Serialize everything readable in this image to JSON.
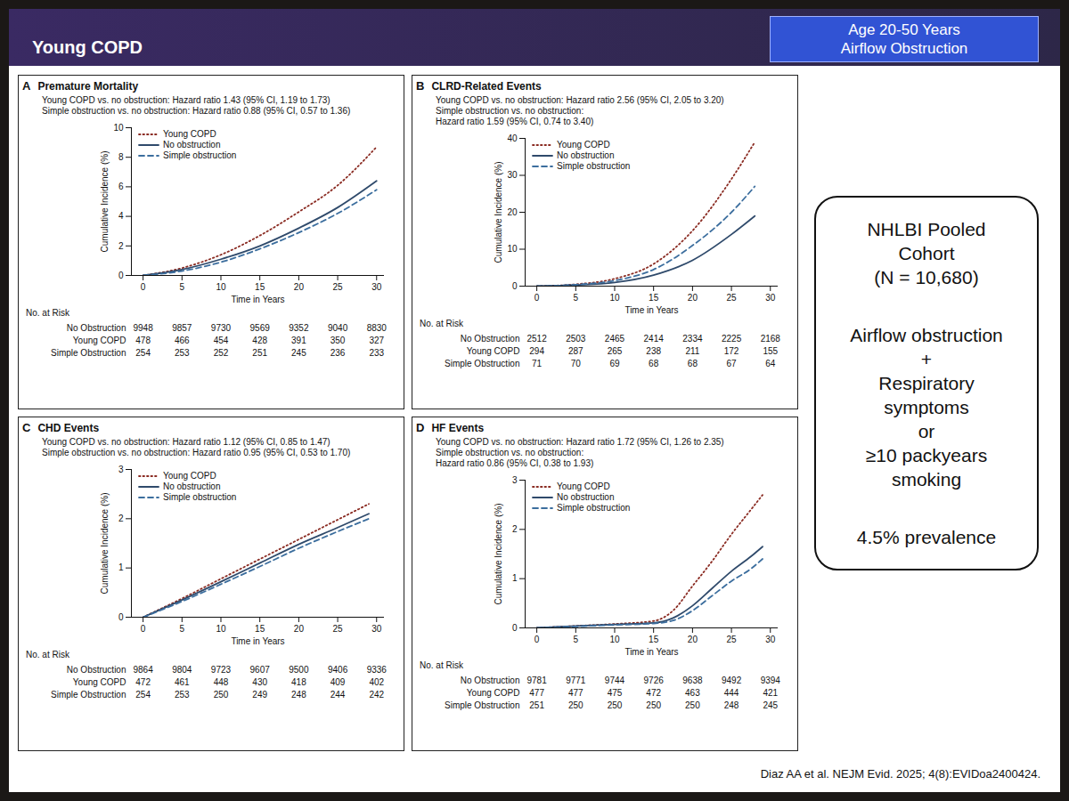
{
  "slide": {
    "title": "Young COPD",
    "banner": [
      "Age 20-50 Years",
      "Airflow Obstruction"
    ],
    "sidebar": {
      "heading": [
        "NHLBI Pooled",
        "Cohort",
        "(N = 10,680)"
      ],
      "definition": [
        "Airflow obstruction",
        "+",
        "Respiratory",
        "symptoms",
        "or",
        "≥10 packyears",
        "smoking"
      ],
      "prevalence": "4.5% prevalence"
    },
    "citation": "Diaz AA et al. NEJM Evid. 2025; 4(8):EVIDoa2400424."
  },
  "chart_data": [
    {
      "type": "line",
      "letter": "A",
      "title": "Premature Mortality",
      "annotations": [
        "Young COPD vs. no obstruction: Hazard ratio 1.43 (95% CI, 1.19 to 1.73)",
        "Simple obstruction vs. no obstruction: Hazard ratio 0.88 (95% CI, 0.57 to 1.36)"
      ],
      "xlabel": "Time in Years",
      "ylabel": "Cumulative Incidence (%)",
      "xlim": [
        -1.5,
        31
      ],
      "ylim": [
        0,
        10
      ],
      "xticks": [
        0,
        5,
        10,
        15,
        20,
        25,
        30
      ],
      "yticks": [
        0,
        2,
        4,
        6,
        8,
        10
      ],
      "legend": "top-left",
      "x": [
        0,
        5,
        10,
        15,
        20,
        25,
        30
      ],
      "series": [
        {
          "name": "Young COPD",
          "color": "#8a2b22",
          "line_style": "dotted",
          "values": [
            0,
            0.5,
            1.4,
            2.7,
            4.3,
            6.1,
            8.7
          ]
        },
        {
          "name": "No obstruction",
          "color": "#2f4a6b",
          "line_style": "solid",
          "values": [
            0,
            0.4,
            1.1,
            2.0,
            3.2,
            4.6,
            6.4
          ]
        },
        {
          "name": "Simple obstruction",
          "color": "#3c6e9e",
          "line_style": "dashed",
          "values": [
            0,
            0.3,
            0.9,
            1.8,
            2.9,
            4.2,
            5.8
          ]
        }
      ],
      "at_risk": {
        "title": "No. at Risk",
        "rows": [
          {
            "name": "No Obstruction",
            "values": [
              9948,
              9857,
              9730,
              9569,
              9352,
              9040,
              8830
            ]
          },
          {
            "name": "Young COPD",
            "values": [
              478,
              466,
              454,
              428,
              391,
              350,
              327
            ]
          },
          {
            "name": "Simple Obstruction",
            "values": [
              254,
              253,
              252,
              251,
              245,
              236,
              233
            ]
          }
        ]
      }
    },
    {
      "type": "line",
      "letter": "B",
      "title": "CLRD-Related Events",
      "annotations": [
        "Young COPD vs. no obstruction: Hazard ratio 2.56 (95% CI, 2.05 to 3.20)",
        "Simple obstruction vs. no obstruction:",
        "Hazard ratio 1.59 (95% CI, 0.74 to 3.40)"
      ],
      "xlabel": "Time in Years",
      "ylabel": "Cumulative Incidence (%)",
      "xlim": [
        -1.5,
        31
      ],
      "ylim": [
        0,
        40
      ],
      "xticks": [
        0,
        5,
        10,
        15,
        20,
        25,
        30
      ],
      "yticks": [
        0,
        10,
        20,
        30,
        40
      ],
      "legend": "top-left",
      "x": [
        0,
        5,
        10,
        15,
        20,
        25,
        28
      ],
      "series": [
        {
          "name": "Young COPD",
          "color": "#8a2b22",
          "line_style": "dotted",
          "values": [
            0,
            0.5,
            2,
            6,
            15,
            29,
            39
          ]
        },
        {
          "name": "No obstruction",
          "color": "#2f4a6b",
          "line_style": "solid",
          "values": [
            0,
            0.3,
            1,
            3,
            7,
            14,
            19
          ]
        },
        {
          "name": "Simple obstruction",
          "color": "#3c6e9e",
          "line_style": "dashed",
          "values": [
            0,
            0.4,
            1.5,
            4.5,
            11,
            20,
            27
          ]
        }
      ],
      "at_risk": {
        "title": "No. at Risk",
        "rows": [
          {
            "name": "No Obstruction",
            "values": [
              2512,
              2503,
              2465,
              2414,
              2334,
              2225,
              2168
            ]
          },
          {
            "name": "Young COPD",
            "values": [
              294,
              287,
              265,
              238,
              211,
              172,
              155
            ]
          },
          {
            "name": "Simple Obstruction",
            "values": [
              71,
              70,
              69,
              68,
              68,
              67,
              64
            ]
          }
        ]
      }
    },
    {
      "type": "line",
      "letter": "C",
      "title": "CHD Events",
      "annotations": [
        "Young COPD vs. no obstruction: Hazard ratio 1.12 (95% CI, 0.85 to 1.47)",
        "Simple obstruction vs. no obstruction: Hazard ratio 0.95 (95% CI, 0.53 to 1.70)"
      ],
      "xlabel": "Time in Years",
      "ylabel": "Cumulative Incidence (%)",
      "xlim": [
        -1.5,
        31
      ],
      "ylim": [
        0,
        3
      ],
      "xticks": [
        0,
        5,
        10,
        15,
        20,
        25,
        30
      ],
      "yticks": [
        0,
        1,
        2,
        3
      ],
      "legend": "top-left",
      "x": [
        0,
        5,
        10,
        15,
        20,
        25,
        29
      ],
      "series": [
        {
          "name": "Young COPD",
          "color": "#8a2b22",
          "line_style": "dotted",
          "values": [
            0,
            0.38,
            0.78,
            1.18,
            1.58,
            1.98,
            2.3
          ]
        },
        {
          "name": "No obstruction",
          "color": "#2f4a6b",
          "line_style": "solid",
          "values": [
            0,
            0.35,
            0.72,
            1.1,
            1.48,
            1.82,
            2.1
          ]
        },
        {
          "name": "Simple obstruction",
          "color": "#3c6e9e",
          "line_style": "dashed",
          "values": [
            0,
            0.32,
            0.67,
            1.03,
            1.4,
            1.74,
            2.0
          ]
        }
      ],
      "at_risk": {
        "title": "No. at Risk",
        "rows": [
          {
            "name": "No Obstruction",
            "values": [
              9864,
              9804,
              9723,
              9607,
              9500,
              9406,
              9336
            ]
          },
          {
            "name": "Young COPD",
            "values": [
              472,
              461,
              448,
              430,
              418,
              409,
              402
            ]
          },
          {
            "name": "Simple Obstruction",
            "values": [
              254,
              253,
              250,
              249,
              248,
              244,
              242
            ]
          }
        ]
      }
    },
    {
      "type": "line",
      "letter": "D",
      "title": "HF Events",
      "annotations": [
        "Young COPD vs. no obstruction: Hazard ratio 1.72 (95% CI, 1.26 to 2.35)",
        "Simple obstruction vs. no obstruction:",
        "Hazard ratio 0.86 (95% CI, 0.38 to 1.93)"
      ],
      "xlabel": "Time in Years",
      "ylabel": "Cumulative Incidence (%)",
      "xlim": [
        -1.5,
        31
      ],
      "ylim": [
        0,
        3
      ],
      "xticks": [
        0,
        5,
        10,
        15,
        20,
        25,
        30
      ],
      "yticks": [
        0,
        1,
        2,
        3
      ],
      "legend": "top-left",
      "x": [
        0,
        5,
        10,
        15,
        17.5,
        20,
        22.5,
        25,
        27.5,
        29
      ],
      "series": [
        {
          "name": "Young COPD",
          "color": "#8a2b22",
          "line_style": "dotted",
          "values": [
            0,
            0.04,
            0.08,
            0.14,
            0.35,
            0.85,
            1.35,
            1.9,
            2.4,
            2.7
          ]
        },
        {
          "name": "No obstruction",
          "color": "#2f4a6b",
          "line_style": "solid",
          "values": [
            0,
            0.04,
            0.07,
            0.1,
            0.2,
            0.45,
            0.8,
            1.15,
            1.45,
            1.65
          ]
        },
        {
          "name": "Simple obstruction",
          "color": "#3c6e9e",
          "line_style": "dashed",
          "values": [
            0,
            0.03,
            0.06,
            0.09,
            0.15,
            0.35,
            0.65,
            0.95,
            1.2,
            1.4
          ]
        }
      ],
      "at_risk": {
        "title": "No. at Risk",
        "rows": [
          {
            "name": "No Obstruction",
            "values": [
              9781,
              9771,
              9744,
              9726,
              9638,
              9492,
              9394
            ]
          },
          {
            "name": "Young COPD",
            "values": [
              477,
              477,
              475,
              472,
              463,
              444,
              421
            ]
          },
          {
            "name": "Simple Obstruction",
            "values": [
              251,
              250,
              250,
              250,
              250,
              248,
              245
            ]
          }
        ]
      }
    }
  ]
}
